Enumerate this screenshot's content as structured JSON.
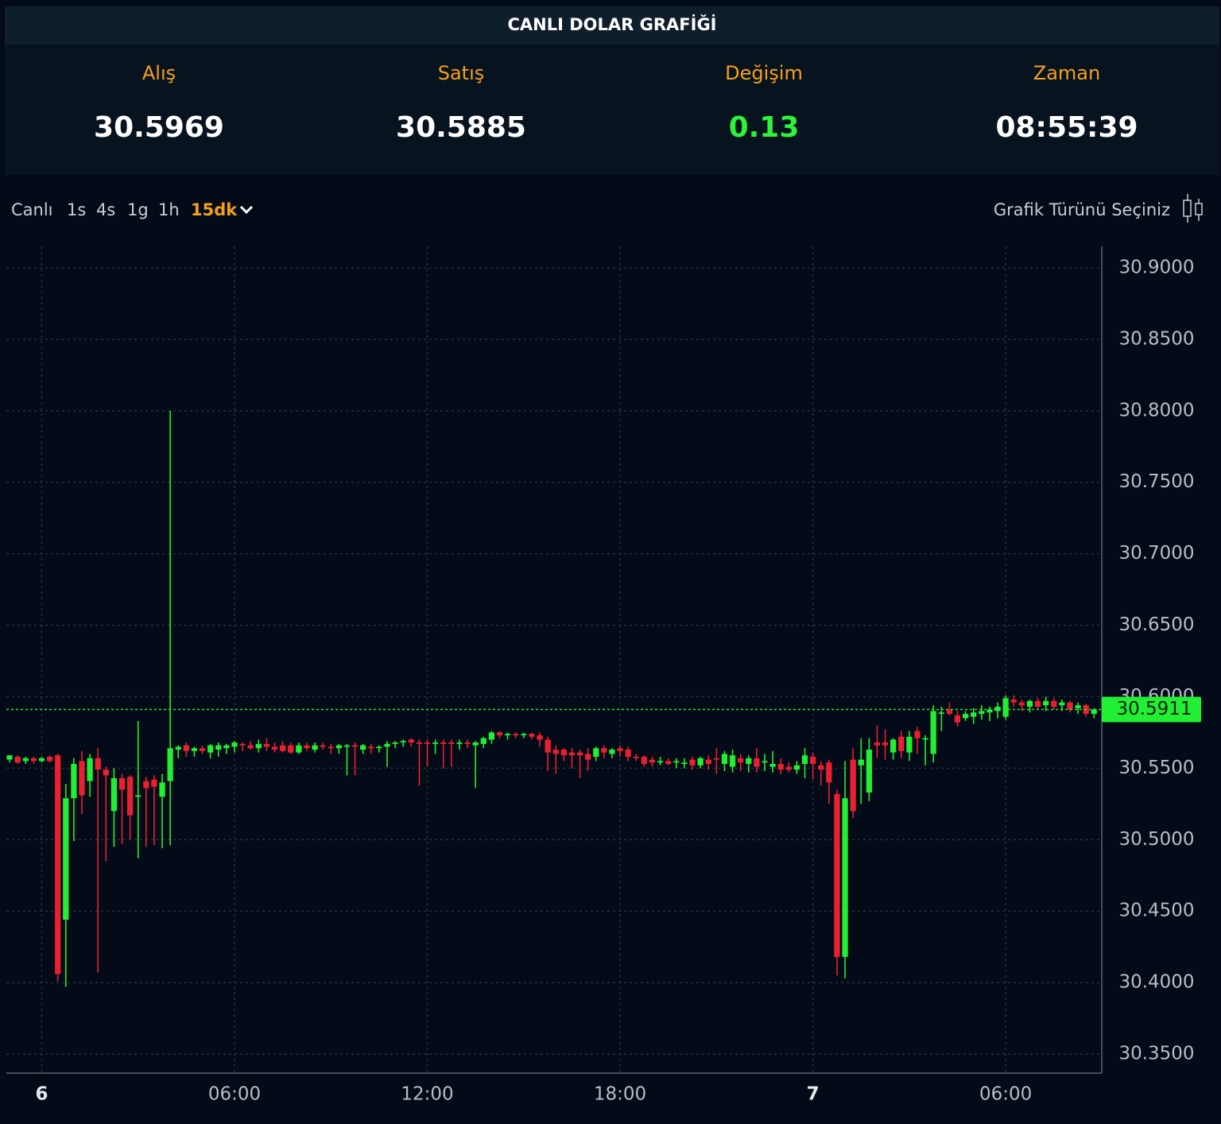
{
  "title": "CANLI DOLAR GRAFİĞİ",
  "quotes": [
    {
      "label": "Alış",
      "value": "30.5969"
    },
    {
      "label": "Satış",
      "value": "30.5885"
    },
    {
      "label": "Değişim",
      "value": "0.13"
    },
    {
      "label": "Zaman",
      "value": "08:55:39"
    }
  ],
  "toolbar": {
    "intervals": [
      "Canlı",
      "1s",
      "4s",
      "1g",
      "1h",
      "15dk"
    ],
    "active": 5,
    "chart_type_label": "Grafik Türünü Seçiniz"
  },
  "chart_data": {
    "type": "candlestick",
    "up_color": "#22ee33",
    "down_color": "#e8202f",
    "grid": true,
    "last_price": 30.5911,
    "last_price_color": "#22ee33",
    "xlim": [
      -1.1,
      32.99
    ],
    "xticks": [
      {
        "value": 0,
        "label": "6"
      },
      {
        "value": 6,
        "label": "06:00"
      },
      {
        "value": 12,
        "label": "12:00"
      },
      {
        "value": 18,
        "label": "18:00"
      },
      {
        "value": 24,
        "label": "7"
      },
      {
        "value": 30,
        "label": "06:00"
      }
    ],
    "ylim": [
      30.3367,
      30.915
    ],
    "yticks": [
      {
        "value": 30.35,
        "label": "30.3500"
      },
      {
        "value": 30.4,
        "label": "30.4000"
      },
      {
        "value": 30.45,
        "label": "30.4500"
      },
      {
        "value": 30.5,
        "label": "30.5000"
      },
      {
        "value": 30.55,
        "label": "30.5500"
      },
      {
        "value": 30.6,
        "label": "30.6000"
      },
      {
        "value": 30.65,
        "label": "30.6500"
      },
      {
        "value": 30.7,
        "label": "30.7000"
      },
      {
        "value": 30.75,
        "label": "30.7500"
      },
      {
        "value": 30.8,
        "label": "30.8000"
      },
      {
        "value": 30.85,
        "label": "30.8500"
      },
      {
        "value": 30.9,
        "label": "30.9000"
      }
    ],
    "x": [
      -1,
      -0.75,
      -0.5,
      -0.25,
      0,
      0.25,
      0.5,
      0.75,
      1,
      1.25,
      1.5,
      1.75,
      2,
      2.25,
      2.5,
      2.75,
      3,
      3.25,
      3.5,
      3.75,
      4,
      4.25,
      4.5,
      4.75,
      5,
      5.25,
      5.5,
      5.75,
      6,
      6.25,
      6.5,
      6.75,
      7,
      7.25,
      7.5,
      7.75,
      8,
      8.25,
      8.5,
      8.75,
      9,
      9.25,
      9.5,
      9.75,
      10,
      10.25,
      10.5,
      10.75,
      11,
      11.25,
      11.5,
      11.75,
      12,
      12.25,
      12.5,
      12.75,
      13,
      13.25,
      13.5,
      13.75,
      14,
      14.25,
      14.5,
      14.75,
      15,
      15.25,
      15.5,
      15.75,
      16,
      16.25,
      16.5,
      16.75,
      17,
      17.25,
      17.5,
      17.75,
      18,
      18.25,
      18.5,
      18.75,
      19,
      19.25,
      19.5,
      19.75,
      20,
      20.25,
      20.5,
      20.75,
      21,
      21.25,
      21.5,
      21.75,
      22,
      22.25,
      22.5,
      22.75,
      23,
      23.25,
      23.5,
      23.75,
      24,
      24.25,
      24.5,
      24.75,
      25,
      25.25,
      25.5,
      25.75,
      26,
      26.25,
      26.5,
      26.75,
      27,
      27.25,
      27.5,
      27.75,
      28,
      28.25,
      28.5,
      28.75,
      29,
      29.25,
      29.5,
      29.75,
      30,
      30.25,
      30.5,
      30.75,
      31,
      31.25,
      31.5,
      31.75,
      32,
      32.25,
      32.5,
      32.75
    ],
    "open": [
      30.556,
      30.558,
      30.555,
      30.557,
      30.555,
      30.558,
      30.559,
      30.444,
      30.529,
      30.555,
      30.541,
      30.557,
      30.549,
      30.52,
      30.543,
      30.544,
      30.53,
      30.541,
      30.542,
      30.53,
      30.541,
      30.563,
      30.566,
      30.562,
      30.564,
      30.561,
      30.563,
      30.564,
      30.565,
      30.567,
      30.566,
      30.564,
      30.567,
      30.565,
      30.566,
      30.566,
      30.561,
      30.566,
      30.563,
      30.566,
      30.565,
      30.564,
      30.565,
      30.566,
      30.563,
      30.565,
      30.564,
      30.565,
      30.567,
      30.568,
      30.57,
      30.568,
      30.568,
      30.567,
      30.568,
      30.568,
      30.567,
      30.568,
      30.566,
      30.567,
      30.57,
      30.575,
      30.573,
      30.574,
      30.573,
      30.574,
      30.573,
      30.57,
      30.563,
      30.563,
      30.561,
      30.561,
      30.56,
      30.558,
      30.564,
      30.56,
      30.564,
      30.563,
      30.558,
      30.558,
      30.556,
      30.554,
      30.555,
      30.554,
      30.553,
      30.556,
      30.552,
      30.556,
      30.557,
      30.553,
      30.551,
      30.557,
      30.553,
      30.557,
      30.554,
      30.551,
      30.553,
      30.551,
      30.549,
      30.553,
      30.558,
      30.552,
      30.554,
      30.532,
      30.418,
      30.556,
      30.552,
      30.533,
      30.568,
      30.568,
      30.561,
      30.572,
      30.561,
      30.576,
      30.57,
      30.56,
      30.588,
      30.591,
      30.587,
      30.585,
      30.586,
      30.588,
      30.589,
      30.59,
      30.586,
      30.598,
      30.596,
      30.593,
      30.597,
      30.594,
      30.597,
      30.594,
      30.596,
      30.592,
      30.594,
      30.588
    ],
    "high": [
      30.559,
      30.559,
      30.558,
      30.558,
      30.558,
      30.559,
      30.56,
      30.539,
      30.557,
      30.562,
      30.56,
      30.564,
      30.551,
      30.55,
      30.546,
      30.545,
      30.583,
      30.544,
      30.545,
      30.546,
      30.8,
      30.566,
      30.568,
      30.565,
      30.566,
      30.567,
      30.568,
      30.567,
      30.569,
      30.568,
      30.569,
      30.57,
      30.571,
      30.568,
      30.569,
      30.568,
      30.568,
      30.568,
      30.568,
      30.568,
      30.567,
      30.567,
      30.567,
      30.568,
      30.567,
      30.567,
      30.566,
      30.569,
      30.569,
      30.57,
      30.571,
      30.57,
      30.57,
      30.57,
      30.57,
      30.57,
      30.57,
      30.57,
      30.569,
      30.572,
      30.576,
      30.576,
      30.575,
      30.575,
      30.575,
      30.575,
      30.575,
      30.572,
      30.566,
      30.564,
      30.564,
      30.563,
      30.564,
      30.565,
      30.566,
      30.564,
      30.566,
      30.565,
      30.56,
      30.559,
      30.558,
      30.558,
      30.557,
      30.557,
      30.557,
      30.558,
      30.558,
      30.559,
      30.564,
      30.562,
      30.563,
      30.56,
      30.559,
      30.564,
      30.56,
      30.562,
      30.557,
      30.554,
      30.555,
      30.564,
      30.561,
      30.555,
      30.556,
      30.535,
      30.555,
      30.564,
      30.571,
      30.571,
      30.58,
      30.577,
      30.571,
      30.576,
      30.576,
      30.579,
      30.573,
      30.594,
      30.593,
      30.596,
      30.59,
      30.59,
      30.592,
      30.594,
      30.593,
      30.596,
      30.601,
      30.601,
      30.598,
      30.598,
      30.599,
      30.6,
      30.599,
      30.598,
      30.597,
      30.596,
      30.595,
      30.592
    ],
    "low": [
      30.554,
      30.553,
      30.553,
      30.553,
      30.554,
      30.554,
      30.401,
      30.397,
      30.499,
      30.518,
      30.53,
      30.407,
      30.485,
      30.495,
      30.497,
      30.5,
      30.487,
      30.495,
      30.496,
      30.494,
      30.496,
      30.557,
      30.558,
      30.558,
      30.56,
      30.557,
      30.558,
      30.56,
      30.561,
      30.562,
      30.563,
      30.561,
      30.562,
      30.561,
      30.561,
      30.56,
      30.56,
      30.562,
      30.561,
      30.563,
      30.56,
      30.56,
      30.545,
      30.545,
      30.56,
      30.56,
      30.561,
      30.551,
      30.564,
      30.565,
      30.565,
      30.538,
      30.551,
      30.56,
      30.55,
      30.551,
      30.563,
      30.564,
      30.536,
      30.564,
      30.567,
      30.571,
      30.57,
      30.571,
      30.571,
      30.57,
      30.565,
      30.548,
      30.546,
      30.555,
      30.55,
      30.543,
      30.548,
      30.555,
      30.557,
      30.557,
      30.558,
      30.555,
      30.555,
      30.551,
      30.551,
      30.552,
      30.552,
      30.55,
      30.55,
      30.549,
      30.55,
      30.549,
      30.546,
      30.548,
      30.547,
      30.548,
      30.547,
      30.547,
      30.548,
      30.547,
      30.546,
      30.547,
      30.546,
      30.543,
      30.542,
      30.538,
      30.525,
      30.405,
      30.403,
      30.515,
      30.525,
      30.527,
      30.557,
      30.556,
      30.556,
      30.557,
      30.555,
      30.56,
      30.552,
      30.554,
      30.576,
      30.587,
      30.579,
      30.583,
      30.581,
      30.584,
      30.583,
      30.585,
      30.584,
      30.593,
      30.59,
      30.589,
      30.591,
      30.59,
      30.591,
      30.59,
      30.589,
      30.588,
      30.586,
      30.585
    ],
    "close": [
      30.559,
      30.554,
      30.557,
      30.555,
      30.557,
      30.555,
      30.406,
      30.529,
      30.553,
      30.531,
      30.557,
      30.549,
      30.545,
      30.543,
      30.535,
      30.517,
      30.531,
      30.536,
      30.537,
      30.54,
      30.564,
      30.565,
      30.562,
      30.564,
      30.562,
      30.566,
      30.566,
      30.566,
      30.568,
      30.566,
      30.564,
      30.567,
      30.565,
      30.563,
      30.562,
      30.561,
      30.566,
      30.564,
      30.566,
      30.565,
      30.564,
      30.566,
      30.566,
      30.565,
      30.566,
      30.564,
      30.565,
      30.567,
      30.568,
      30.569,
      30.568,
      30.567,
      30.567,
      30.568,
      30.567,
      30.567,
      30.568,
      30.567,
      30.568,
      30.571,
      30.575,
      30.573,
      30.574,
      30.573,
      30.574,
      30.572,
      30.57,
      30.561,
      30.56,
      30.559,
      30.559,
      30.559,
      30.556,
      30.564,
      30.561,
      30.563,
      30.562,
      30.558,
      30.557,
      30.553,
      30.554,
      30.555,
      30.553,
      30.555,
      30.554,
      30.552,
      30.557,
      30.553,
      30.556,
      30.56,
      30.559,
      30.554,
      30.557,
      30.551,
      30.555,
      30.553,
      30.549,
      30.549,
      30.552,
      30.559,
      30.553,
      30.549,
      30.54,
      30.418,
      30.529,
      30.52,
      30.556,
      30.563,
      30.566,
      30.566,
      30.57,
      30.562,
      30.572,
      30.571,
      30.571,
      30.59,
      30.589,
      30.588,
      30.582,
      30.588,
      30.589,
      30.59,
      30.591,
      30.593,
      30.599,
      30.596,
      30.594,
      30.597,
      30.593,
      30.597,
      30.593,
      30.596,
      30.591,
      30.594,
      30.588,
      30.591
    ]
  }
}
